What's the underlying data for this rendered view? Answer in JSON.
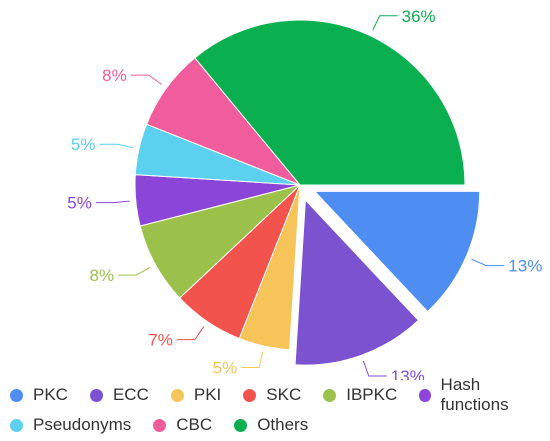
{
  "chart_data": {
    "type": "pie",
    "start_angle_deg": 0,
    "exploded": [
      "PKC",
      "ECC"
    ],
    "slices": [
      {
        "name": "PKC",
        "value": 13,
        "label": "13%",
        "color": "#4e8ef2"
      },
      {
        "name": "ECC",
        "value": 13,
        "label": "13%",
        "color": "#7b52cf"
      },
      {
        "name": "PKI",
        "value": 5,
        "label": "5%",
        "color": "#f7c45a"
      },
      {
        "name": "SKC",
        "value": 7,
        "label": "7%",
        "color": "#f2534c"
      },
      {
        "name": "IBPKC",
        "value": 8,
        "label": "8%",
        "color": "#9cc14a"
      },
      {
        "name": "Hash functions",
        "value": 5,
        "label": "5%",
        "color": "#8b45d9"
      },
      {
        "name": "Pseudonyms",
        "value": 5,
        "label": "5%",
        "color": "#5bd0ef"
      },
      {
        "name": "CBC",
        "value": 8,
        "label": "8%",
        "color": "#f05c9c"
      },
      {
        "name": "Others",
        "value": 36,
        "label": "36%",
        "color": "#0ab04f"
      }
    ],
    "legend": {
      "position": "bottom",
      "rows": [
        [
          "PKC",
          "ECC",
          "PKI",
          "SKC",
          "IBPKC",
          "Hash functions"
        ],
        [
          "Pseudonyms",
          "CBC",
          "Others"
        ]
      ]
    }
  }
}
